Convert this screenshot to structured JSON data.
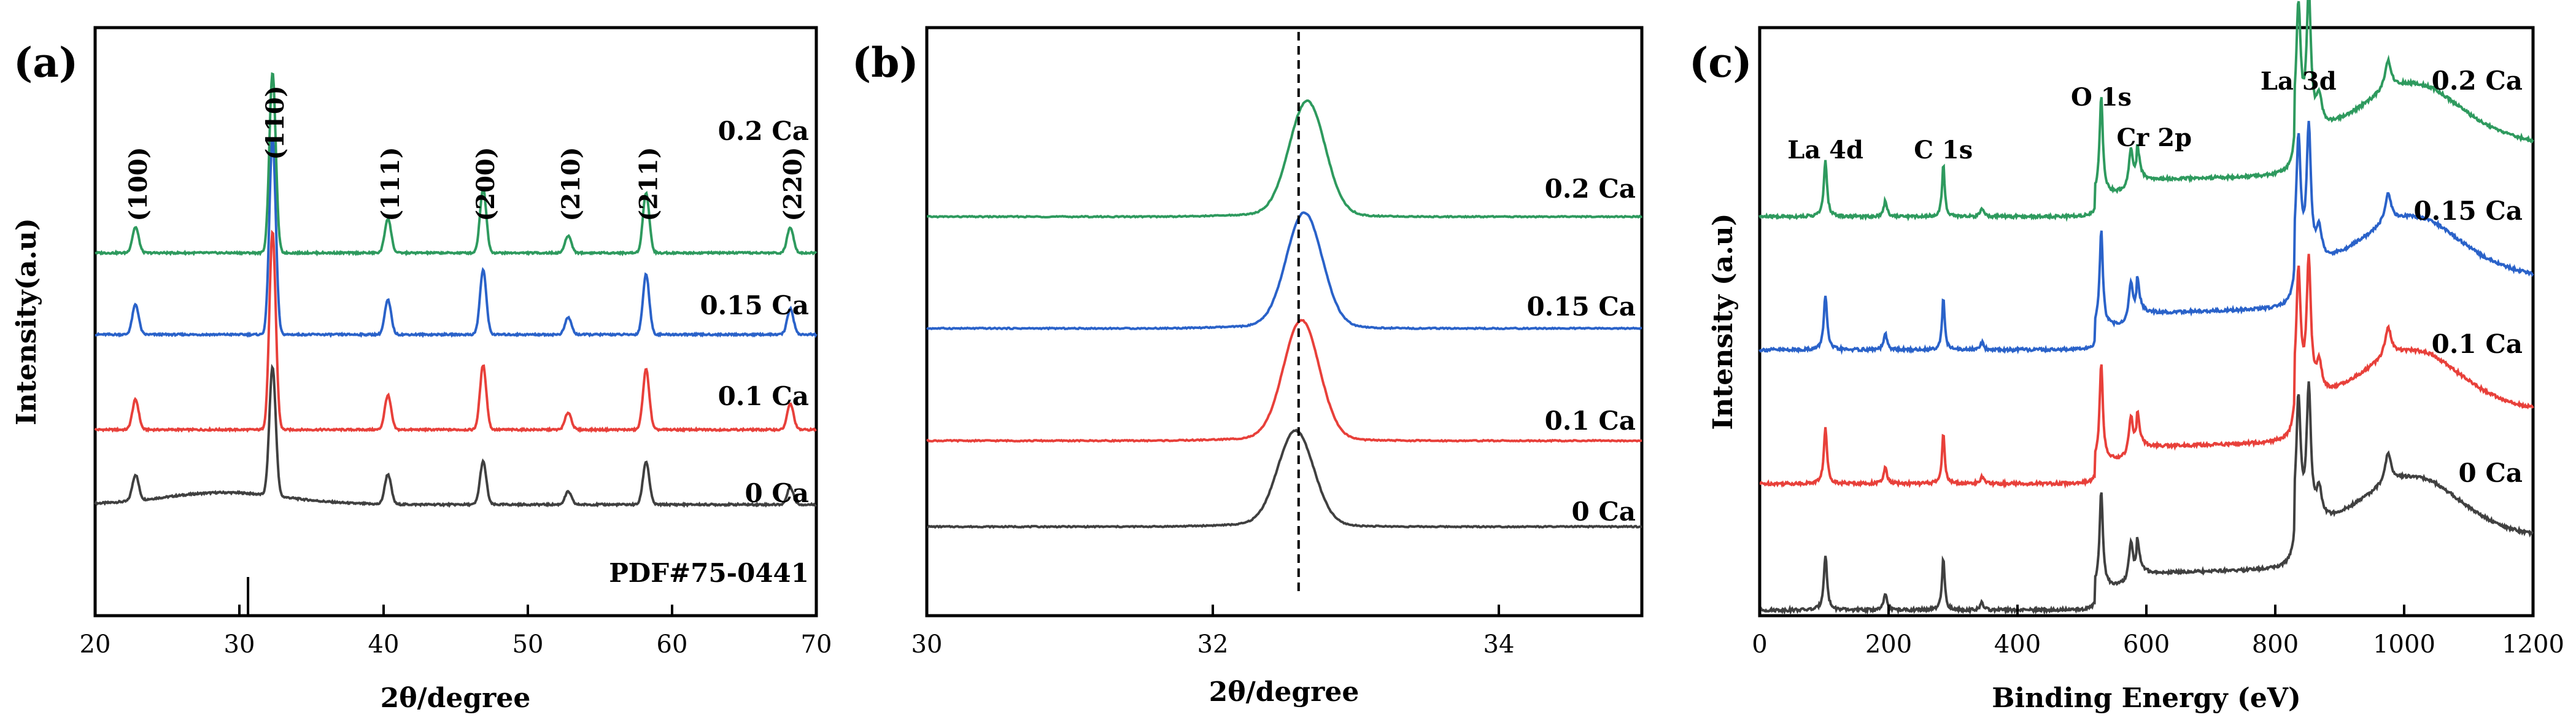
{
  "chart_data": [
    {
      "panel": "(a)",
      "type": "line",
      "xlabel": "2θ/degree",
      "ylabel": "Intensity(a.u)",
      "xlim": [
        20,
        70
      ],
      "xticks": [
        20,
        30,
        40,
        50,
        60,
        70
      ],
      "y_ticks_shown": false,
      "series": [
        {
          "name": "0 Ca",
          "color": "#404040",
          "offset": 0,
          "baseline_rise": 1,
          "peaks": [
            [
              22.8,
              0.06
            ],
            [
              32.3,
              0.3
            ],
            [
              40.3,
              0.07
            ],
            [
              46.9,
              0.1
            ],
            [
              52.8,
              0.03
            ],
            [
              58.2,
              0.1
            ],
            [
              68.2,
              0.04
            ]
          ]
        },
        {
          "name": "0.1 Ca",
          "color": "#e8403a",
          "offset": 1,
          "baseline_rise": 0,
          "peaks": [
            [
              22.8,
              0.07
            ],
            [
              32.3,
              0.46
            ],
            [
              40.3,
              0.08
            ],
            [
              46.9,
              0.15
            ],
            [
              52.8,
              0.04
            ],
            [
              58.2,
              0.14
            ],
            [
              68.2,
              0.06
            ]
          ]
        },
        {
          "name": "0.15 Ca",
          "color": "#2a62c9",
          "offset": 2,
          "baseline_rise": 0,
          "peaks": [
            [
              22.8,
              0.07
            ],
            [
              32.3,
              0.46
            ],
            [
              40.3,
              0.08
            ],
            [
              46.9,
              0.15
            ],
            [
              52.8,
              0.04
            ],
            [
              58.2,
              0.14
            ],
            [
              68.2,
              0.06
            ]
          ]
        },
        {
          "name": "0.2 Ca",
          "color": "#2e9a5e",
          "offset": 3,
          "baseline_rise": 0,
          "peaks": [
            [
              22.8,
              0.06
            ],
            [
              32.3,
              0.42
            ],
            [
              40.3,
              0.08
            ],
            [
              46.9,
              0.15
            ],
            [
              52.8,
              0.04
            ],
            [
              58.2,
              0.14
            ],
            [
              68.2,
              0.06
            ]
          ]
        }
      ],
      "annotations": [
        {
          "text": "(100)",
          "x": 22.8
        },
        {
          "text": "(110)",
          "x": 32.3
        },
        {
          "text": "(111)",
          "x": 40.3
        },
        {
          "text": "(200)",
          "x": 46.9
        },
        {
          "text": "(210)",
          "x": 52.8
        },
        {
          "text": "(211)",
          "x": 58.2
        },
        {
          "text": "(220)",
          "x": 68.2
        }
      ],
      "reference": {
        "label": "PDF#75-0441",
        "x": 30.6
      }
    },
    {
      "panel": "(b)",
      "type": "line",
      "xlabel": "2θ/degree",
      "xlim": [
        30,
        35
      ],
      "xticks": [
        30,
        32,
        34
      ],
      "y_ticks_shown": false,
      "reference_line_x": 32.6,
      "series": [
        {
          "name": "0 Ca",
          "color": "#404040",
          "offset": 0,
          "peak_x": 32.58,
          "peak_height": 0.95
        },
        {
          "name": "0.1 Ca",
          "color": "#e8403a",
          "offset": 1,
          "peak_x": 32.62,
          "peak_height": 1.2
        },
        {
          "name": "0.15 Ca",
          "color": "#2a62c9",
          "offset": 2,
          "peak_x": 32.64,
          "peak_height": 1.15
        },
        {
          "name": "0.2 Ca",
          "color": "#2e9a5e",
          "offset": 3,
          "peak_x": 32.66,
          "peak_height": 1.15
        }
      ]
    },
    {
      "panel": "(c)",
      "type": "line",
      "xlabel": "Binding Energy  (eV)",
      "ylabel": "Intensity (a.u)",
      "xlim": [
        0,
        1200
      ],
      "xticks": [
        0,
        200,
        400,
        600,
        800,
        1000,
        1200
      ],
      "y_ticks_shown": false,
      "series": [
        {
          "name": "0 Ca",
          "color": "#404040",
          "offset": 0
        },
        {
          "name": "0.1 Ca",
          "color": "#e8403a",
          "offset": 1
        },
        {
          "name": "0.15 Ca",
          "color": "#2a62c9",
          "offset": 2
        },
        {
          "name": "0.2 Ca",
          "color": "#2e9a5e",
          "offset": 3
        }
      ],
      "peak_labels": [
        {
          "text": "La 4d",
          "x": 102
        },
        {
          "text": "C 1s",
          "x": 285
        },
        {
          "text": "O 1s",
          "x": 530
        },
        {
          "text": "Cr 2p",
          "x": 576
        },
        {
          "text": "La 3d",
          "x": 836
        }
      ]
    }
  ]
}
